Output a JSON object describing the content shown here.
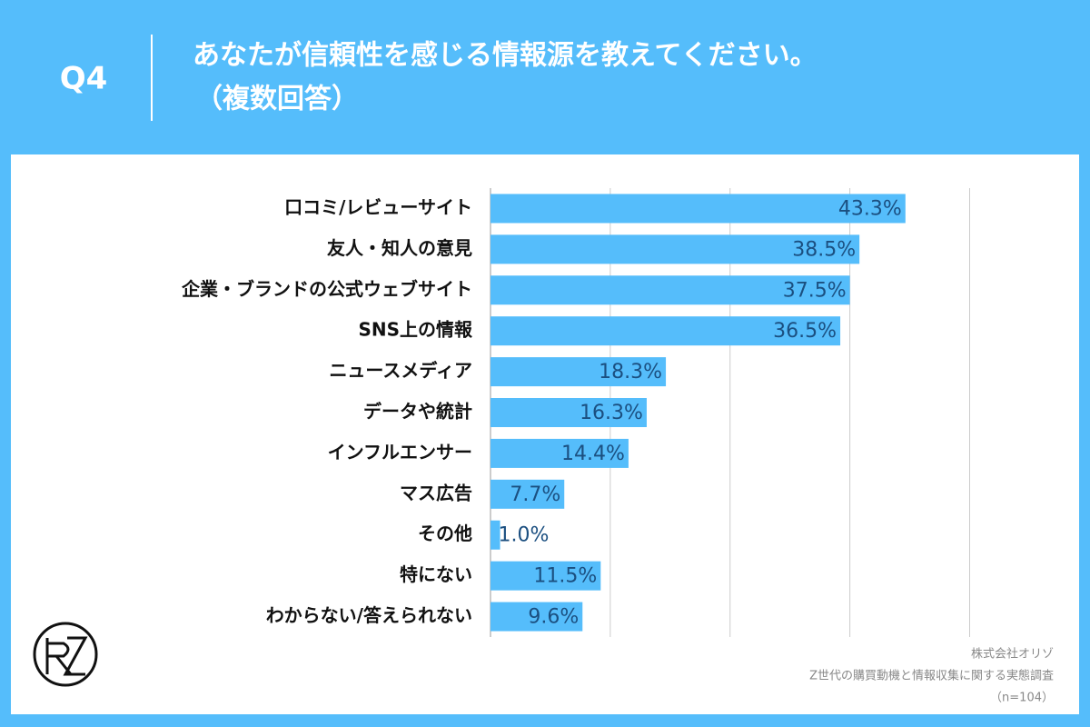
{
  "header": {
    "question": "Q4",
    "title": "あなたが信頼性を感じる情報源を教えてください。",
    "subtitle": "（複数回答）"
  },
  "chart_data": {
    "type": "barh",
    "categories": [
      "口コミ/レビューサイト",
      "友人・知人の意見",
      "企業・ブランドの公式ウェブサイト",
      "SNS上の情報",
      "ニュースメディア",
      "データや統計",
      "インフルエンサー",
      "マス広告",
      "その他",
      "特にない",
      "わからない/答えられない"
    ],
    "values": [
      43.3,
      38.5,
      37.5,
      36.5,
      18.3,
      16.3,
      14.4,
      7.7,
      1.0,
      11.5,
      9.6
    ],
    "value_labels": [
      "43.3%",
      "38.5%",
      "37.5%",
      "36.5%",
      "18.3%",
      "16.3%",
      "14.4%",
      "7.7%",
      "1.0%",
      "11.5%",
      "9.6%"
    ],
    "color": "#55bdfb",
    "label_color": "#1b4f80",
    "xlim": [
      0,
      50
    ],
    "xticks": [
      0,
      12.5,
      25,
      37.5,
      50
    ],
    "grid": true
  },
  "footer": {
    "company": "株式会社オリゾ",
    "survey": "Z世代の購買動機と情報収集に関する実態調査",
    "sample": "（n=104）"
  }
}
